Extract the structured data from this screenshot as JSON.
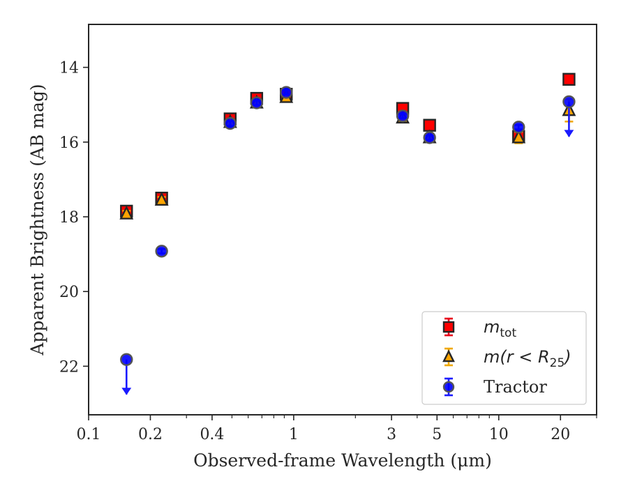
{
  "chart_data": {
    "type": "scatter",
    "xlabel": "Observed-frame Wavelength (μm)",
    "ylabel": "Apparent Brightness (AB mag)",
    "xscale": "log",
    "xlim": [
      0.1,
      30
    ],
    "ylim": [
      23.3,
      12.85
    ],
    "y_inverted": true,
    "grid": false,
    "legend_position": "lower-right",
    "x_ticks": [
      0.1,
      0.2,
      0.4,
      1,
      3,
      5,
      10,
      20
    ],
    "x_tick_labels": [
      "0.1",
      "0.2",
      "0.4",
      "1",
      "3",
      "5",
      "10",
      "20"
    ],
    "y_ticks": [
      14,
      16,
      18,
      20,
      22
    ],
    "y_tick_labels": [
      "14",
      "16",
      "18",
      "20",
      "22"
    ],
    "series": [
      {
        "name": "m_tot",
        "legend_label": {
          "main": "m",
          "sub": "tot",
          "rest": ""
        },
        "marker": "square",
        "face_color": "#ff0000",
        "edge_color": "#262626",
        "err_color": "#e8001a",
        "points": [
          {
            "x": 0.153,
            "y": 17.85,
            "err": 0.12
          },
          {
            "x": 0.227,
            "y": 17.5,
            "err": 0.08
          },
          {
            "x": 0.49,
            "y": 15.38,
            "err": 0.07
          },
          {
            "x": 0.66,
            "y": 14.83,
            "err": 0.07
          },
          {
            "x": 0.92,
            "y": 14.72,
            "err": 0.07
          },
          {
            "x": 3.4,
            "y": 15.1,
            "err": 0.07
          },
          {
            "x": 4.6,
            "y": 15.55,
            "err": 0.07
          },
          {
            "x": 12.5,
            "y": 15.85,
            "err": 0.07
          },
          {
            "x": 22,
            "y": 14.32,
            "err": 0.07
          }
        ]
      },
      {
        "name": "m(r < R25)",
        "legend_label": {
          "main": "m(r < R",
          "sub": "25",
          "rest": ")"
        },
        "marker": "triangle",
        "face_color": "#ffa500",
        "edge_color": "#262626",
        "err_color": "#f0a800",
        "points": [
          {
            "x": 0.153,
            "y": 17.92,
            "err": 0.08
          },
          {
            "x": 0.227,
            "y": 17.55,
            "err": 0.08
          },
          {
            "x": 0.49,
            "y": 15.47,
            "err": 0.07
          },
          {
            "x": 0.66,
            "y": 14.95,
            "err": 0.07
          },
          {
            "x": 0.92,
            "y": 14.8,
            "err": 0.07
          },
          {
            "x": 3.4,
            "y": 15.35,
            "err": 0.07
          },
          {
            "x": 4.6,
            "y": 15.88,
            "err": 0.07
          },
          {
            "x": 12.5,
            "y": 15.88,
            "err": 0.15
          },
          {
            "x": 22,
            "y": 15.15,
            "err": 0.3
          }
        ]
      },
      {
        "name": "Tractor",
        "legend_label": {
          "main": "Tractor",
          "sub": "",
          "rest": ""
        },
        "marker": "circle",
        "face_color": "#0000ff",
        "edge_color": "#555555",
        "err_color": "#1a1aff",
        "points": [
          {
            "x": 0.153,
            "y": 21.82,
            "err": 0.0,
            "upper_limit": true
          },
          {
            "x": 0.227,
            "y": 18.92,
            "err": 0.06
          },
          {
            "x": 0.49,
            "y": 15.5,
            "err": 0.06
          },
          {
            "x": 0.66,
            "y": 14.95,
            "err": 0.06
          },
          {
            "x": 0.92,
            "y": 14.67,
            "err": 0.06
          },
          {
            "x": 3.4,
            "y": 15.3,
            "err": 0.06
          },
          {
            "x": 4.6,
            "y": 15.88,
            "err": 0.06
          },
          {
            "x": 12.5,
            "y": 15.6,
            "err": 0.06
          },
          {
            "x": 22,
            "y": 14.92,
            "err": 0.0,
            "upper_limit": true
          }
        ]
      }
    ]
  }
}
